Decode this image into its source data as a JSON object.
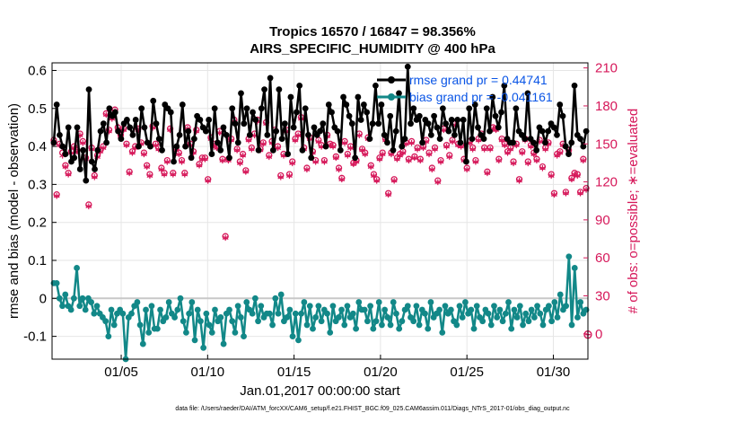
{
  "chart_data": {
    "type": "line",
    "title": "Tropics 16570 / 16847 = 98.356%",
    "subtitle": "AIRS_SPECIFIC_HUMIDITY @ 400 hPa",
    "xlabel": "Jan.01,2017 00:00:00 start",
    "ylabel": "rmse and bias (model - observation)",
    "y2label": "# of obs: o=possible; ∗=evaluated",
    "x_tick_labels": [
      "01/05",
      "01/10",
      "01/15",
      "01/20",
      "01/25",
      "01/30"
    ],
    "x_tick_values": [
      5,
      10,
      15,
      20,
      25,
      30
    ],
    "xlim": [
      1,
      32
    ],
    "ylim": [
      -0.16,
      0.62
    ],
    "y_ticks": [
      "-0.1",
      "0",
      "0.1",
      "0.2",
      "0.3",
      "0.4",
      "0.5",
      "0.6"
    ],
    "y2lim": [
      -20,
      214
    ],
    "y2_ticks": [
      "0",
      "30",
      "60",
      "90",
      "120",
      "150",
      "180",
      "210"
    ],
    "footnote": "data file: /Users/raeder/DAI/ATM_forcXX/CAM6_setup/f.e21.FHIST_BGC.f09_025.CAM6assim.011/Diags_NTrS_2017-01/obs_diag_output.nc",
    "series": [
      {
        "name": "rmse grand pr = 0.44741",
        "color": "#000000",
        "axis": "left",
        "values": [
          0.41,
          0.51,
          0.43,
          0.4,
          0.38,
          0.45,
          0.36,
          0.37,
          0.45,
          0.34,
          0.39,
          0.31,
          0.55,
          0.36,
          0.34,
          0.39,
          0.44,
          0.46,
          0.41,
          0.5,
          0.48,
          0.49,
          0.44,
          0.42,
          0.46,
          0.47,
          0.45,
          0.43,
          0.47,
          0.4,
          0.5,
          0.45,
          0.41,
          0.4,
          0.52,
          0.46,
          0.42,
          0.39,
          0.51,
          0.5,
          0.49,
          0.36,
          0.4,
          0.43,
          0.51,
          0.4,
          0.44,
          0.37,
          0.42,
          0.48,
          0.47,
          0.45,
          0.44,
          0.47,
          0.38,
          0.5,
          0.41,
          0.39,
          0.45,
          0.43,
          0.37,
          0.5,
          0.46,
          0.41,
          0.54,
          0.46,
          0.5,
          0.43,
          0.49,
          0.47,
          0.39,
          0.5,
          0.55,
          0.43,
          0.58,
          0.39,
          0.44,
          0.55,
          0.42,
          0.46,
          0.38,
          0.53,
          0.45,
          0.49,
          0.56,
          0.39,
          0.5,
          0.43,
          0.37,
          0.45,
          0.43,
          0.44,
          0.46,
          0.4,
          0.51,
          0.49,
          0.45,
          0.44,
          0.39,
          0.53,
          0.51,
          0.48,
          0.46,
          0.37,
          0.53,
          0.47,
          0.51,
          0.49,
          0.42,
          0.46,
          0.56,
          0.46,
          0.51,
          0.43,
          0.41,
          0.48,
          0.39,
          0.44,
          0.54,
          0.4,
          0.42,
          0.61,
          0.46,
          0.5,
          0.47,
          0.48,
          0.41,
          0.47,
          0.46,
          0.43,
          0.48,
          0.45,
          0.42,
          0.5,
          0.46,
          0.44,
          0.47,
          0.43,
          0.47,
          0.41,
          0.47,
          0.36,
          0.5,
          0.42,
          0.51,
          0.45,
          0.43,
          0.42,
          0.5,
          0.44,
          0.53,
          0.48,
          0.45,
          0.49,
          0.56,
          0.42,
          0.41,
          0.41,
          0.5,
          0.44,
          0.43,
          0.42,
          0.54,
          0.42,
          0.41,
          0.39,
          0.45,
          0.44,
          0.41,
          0.44,
          0.46,
          0.45,
          0.43,
          0.51,
          0.48,
          0.4,
          0.38,
          0.41,
          0.56,
          0.43,
          0.42,
          0.4,
          0.44
        ]
      },
      {
        "name": "bias grand pr = -0.041161",
        "color": "#128888",
        "axis": "left",
        "values": [
          0.04,
          0.04,
          0.0,
          -0.02,
          0.01,
          -0.02,
          -0.03,
          0.0,
          0.08,
          -0.02,
          0.0,
          -0.03,
          0.0,
          -0.01,
          -0.04,
          -0.02,
          -0.04,
          -0.05,
          -0.06,
          -0.1,
          -0.03,
          -0.07,
          -0.04,
          -0.03,
          -0.04,
          -0.16,
          -0.05,
          -0.04,
          -0.02,
          -0.01,
          -0.07,
          -0.12,
          -0.03,
          -0.09,
          -0.02,
          -0.08,
          -0.08,
          -0.03,
          -0.06,
          -0.05,
          -0.01,
          -0.04,
          -0.05,
          -0.03,
          0.0,
          -0.06,
          -0.09,
          -0.04,
          -0.01,
          -0.11,
          -0.03,
          -0.06,
          -0.13,
          -0.04,
          -0.07,
          -0.09,
          -0.03,
          -0.06,
          -0.05,
          -0.12,
          -0.04,
          -0.03,
          -0.06,
          -0.09,
          -0.02,
          -0.05,
          -0.1,
          -0.01,
          -0.03,
          -0.04,
          0.0,
          -0.06,
          -0.02,
          -0.05,
          -0.04,
          -0.04,
          -0.07,
          0.0,
          -0.04,
          0.01,
          -0.06,
          -0.05,
          -0.03,
          -0.1,
          -0.04,
          -0.11,
          -0.04,
          -0.01,
          -0.07,
          -0.02,
          -0.08,
          -0.05,
          -0.02,
          -0.06,
          -0.03,
          -0.04,
          -0.09,
          -0.02,
          -0.06,
          -0.05,
          -0.03,
          -0.07,
          -0.02,
          -0.05,
          -0.04,
          -0.08,
          -0.01,
          -0.03,
          -0.03,
          -0.06,
          -0.02,
          -0.08,
          -0.06,
          -0.01,
          -0.07,
          -0.03,
          -0.05,
          -0.07,
          -0.01,
          -0.04,
          -0.08,
          -0.06,
          -0.03,
          -0.02,
          -0.05,
          -0.06,
          -0.02,
          -0.07,
          -0.03,
          -0.04,
          -0.08,
          -0.01,
          -0.05,
          -0.04,
          -0.03,
          -0.09,
          -0.02,
          -0.04,
          -0.03,
          -0.06,
          -0.07,
          -0.02,
          -0.05,
          -0.01,
          -0.04,
          -0.03,
          -0.08,
          -0.02,
          -0.05,
          -0.06,
          -0.03,
          -0.04,
          -0.07,
          -0.02,
          -0.05,
          -0.03,
          -0.06,
          -0.04,
          -0.01,
          -0.08,
          -0.03,
          -0.05,
          -0.02,
          -0.07,
          -0.04,
          -0.06,
          -0.03,
          -0.05,
          -0.02,
          -0.04,
          -0.07,
          -0.03,
          -0.02,
          -0.06,
          -0.01,
          -0.05,
          0.01,
          -0.03,
          -0.02,
          0.11,
          -0.07,
          0.08,
          -0.05,
          -0.01,
          -0.04,
          -0.03
        ]
      },
      {
        "name": "# of obs possible",
        "marker": "o",
        "color": "#d6185a",
        "axis": "right",
        "values": [
          153,
          110,
          150,
          143,
          133,
          127,
          144,
          148,
          145,
          158,
          152,
          139,
          102,
          147,
          125,
          141,
          145,
          148,
          174,
          161,
          171,
          177,
          163,
          157,
          162,
          150,
          128,
          144,
          148,
          162,
          151,
          143,
          133,
          126,
          164,
          150,
          147,
          131,
          127,
          137,
          162,
          127,
          146,
          143,
          137,
          127,
          163,
          150,
          144,
          161,
          134,
          139,
          139,
          122,
          155,
          150,
          148,
          160,
          138,
          77,
          138,
          154,
          169,
          146,
          136,
          142,
          129,
          154,
          147,
          158,
          169,
          146,
          151,
          167,
          141,
          152,
          161,
          148,
          125,
          142,
          161,
          126,
          136,
          154,
          158,
          171,
          147,
          131,
          155,
          144,
          137,
          153,
          149,
          137,
          157,
          150,
          149,
          140,
          131,
          123,
          152,
          142,
          148,
          135,
          137,
          158,
          146,
          143,
          155,
          133,
          126,
          122,
          139,
          143,
          154,
          111,
          143,
          122,
          139,
          142,
          144,
          151,
          138,
          152,
          140,
          147,
          138,
          148,
          153,
          143,
          131,
          147,
          121,
          137,
          162,
          149,
          141,
          153,
          166,
          150,
          149,
          138,
          131,
          152,
          147,
          137,
          154,
          158,
          147,
          128,
          147,
          163,
          162,
          138,
          154,
          150,
          144,
          147,
          136,
          150,
          122,
          144,
          154,
          136,
          149,
          143,
          138,
          153,
          132,
          147,
          151,
          126,
          111,
          142,
          144,
          150,
          112,
          145,
          123,
          127,
          126,
          112,
          138,
          115
        ]
      },
      {
        "name": "# of obs evaluated",
        "marker": "*",
        "color": "#d6185a",
        "axis": "right",
        "values": [
          150,
          108,
          148,
          140,
          131,
          125,
          142,
          146,
          143,
          156,
          150,
          137,
          100,
          145,
          123,
          139,
          143,
          146,
          172,
          159,
          169,
          175,
          161,
          155,
          160,
          148,
          126,
          142,
          146,
          160,
          149,
          141,
          131,
          124,
          162,
          148,
          145,
          129,
          125,
          135,
          160,
          125,
          144,
          141,
          135,
          125,
          161,
          148,
          142,
          159,
          132,
          137,
          137,
          120,
          153,
          148,
          146,
          158,
          136,
          75,
          136,
          152,
          167,
          144,
          134,
          140,
          127,
          152,
          145,
          156,
          167,
          144,
          149,
          165,
          139,
          150,
          159,
          146,
          123,
          140,
          159,
          124,
          134,
          152,
          156,
          169,
          145,
          129,
          153,
          142,
          135,
          151,
          147,
          135,
          155,
          148,
          147,
          138,
          129,
          121,
          150,
          140,
          146,
          133,
          135,
          156,
          144,
          141,
          153,
          131,
          124,
          120,
          137,
          141,
          152,
          109,
          141,
          120,
          137,
          140,
          142,
          149,
          136,
          150,
          138,
          145,
          136,
          146,
          151,
          141,
          129,
          145,
          119,
          135,
          160,
          147,
          139,
          151,
          164,
          148,
          147,
          136,
          129,
          150,
          145,
          135,
          152,
          156,
          145,
          126,
          145,
          161,
          160,
          136,
          152,
          148,
          142,
          145,
          134,
          148,
          120,
          142,
          152,
          134,
          147,
          141,
          136,
          151,
          130,
          145,
          149,
          124,
          109,
          140,
          142,
          148,
          110,
          143,
          121,
          125,
          124,
          110,
          136,
          113
        ]
      }
    ],
    "outlier_marker_value": 0
  }
}
